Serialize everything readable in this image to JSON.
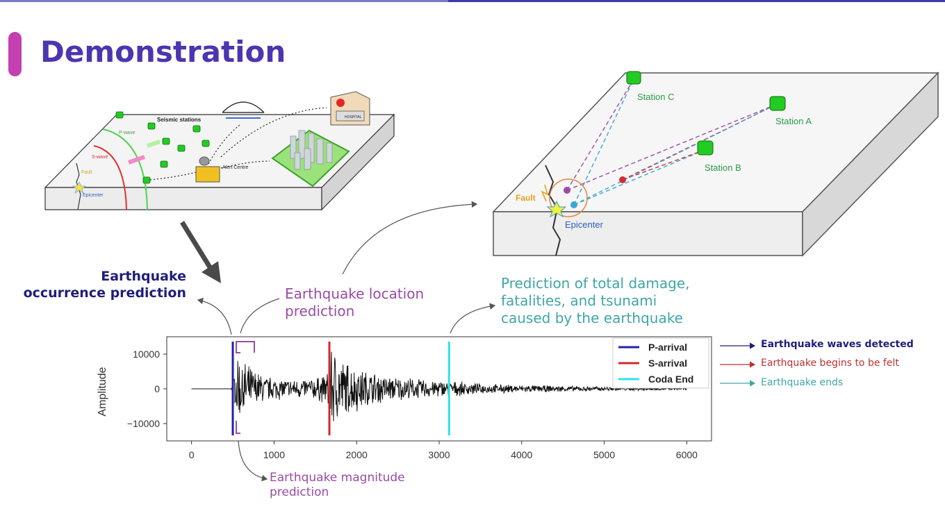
{
  "title": "Demonstration",
  "left_diagram": {
    "labels": {
      "stations": "Seismic stations",
      "p_wave": "P-wave",
      "s_wave": "S-wave",
      "fault": "Fault",
      "epicenter": "Epicenter",
      "alert_centre": "Alert Centre",
      "hospital": "HOSPITAL"
    }
  },
  "right_diagram": {
    "labels": {
      "station_a": "Station A",
      "station_b": "Station B",
      "station_c": "Station C",
      "fault": "Fault",
      "epicenter": "Epicenter"
    }
  },
  "captions": {
    "occurrence": "Earthquake occurrence prediction",
    "location": "Earthquake location prediction",
    "damage": "Prediction of total damage, fatalities, and tsunami caused by the earthquake",
    "magnitude": "Earthquake magnitude prediction"
  },
  "annotations": {
    "p_arrival": "Earthquake waves detected",
    "s_arrival": "Earthquake begins to be felt",
    "coda_end": "Earthquake ends"
  },
  "colors": {
    "title": "#4b36b0",
    "p_arrival": "#2020b0",
    "s_arrival": "#d02828",
    "coda_end": "#30e0e8",
    "station": "#22cc22"
  },
  "chart_data": {
    "type": "line",
    "ylabel": "Amplitude",
    "xlabel": "",
    "xlim": [
      -300,
      6300
    ],
    "ylim": [
      -15000,
      15000
    ],
    "xticks": [
      0,
      1000,
      2000,
      3000,
      4000,
      5000,
      6000
    ],
    "yticks": [
      -10000,
      0,
      10000
    ],
    "legend_position": "top-right",
    "series": [
      {
        "name": "P-arrival",
        "kind": "vline",
        "x": 500
      },
      {
        "name": "S-arrival",
        "kind": "vline",
        "x": 1670
      },
      {
        "name": "Coda End",
        "kind": "vline",
        "x": 3120
      }
    ],
    "waveform_envelope": {
      "x": [
        0,
        480,
        500,
        560,
        700,
        900,
        1200,
        1500,
        1650,
        1680,
        1750,
        1850,
        2100,
        2400,
        2800,
        3100,
        3500,
        4000,
        5000,
        6000
      ],
      "amplitude": [
        0,
        0,
        4000,
        11000,
        7000,
        4000,
        3000,
        3500,
        5000,
        14000,
        12000,
        9000,
        6000,
        4000,
        3000,
        2500,
        1600,
        1200,
        700,
        300
      ]
    }
  }
}
